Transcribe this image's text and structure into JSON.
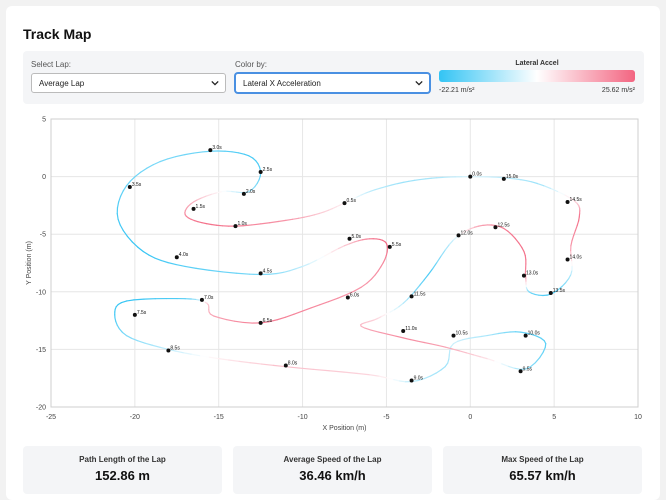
{
  "page": {
    "title": "Track Map"
  },
  "controls": {
    "lap_label": "Select Lap:",
    "lap_value": "Average Lap",
    "color_label": "Color by:",
    "color_value": "Lateral X Acceleration"
  },
  "legend": {
    "title": "Lateral Accel",
    "min_label": "-22.21 m/s²",
    "max_label": "25.62 m/s²",
    "colors": [
      "#33c4f4",
      "#ffffff",
      "#f36581"
    ]
  },
  "chart_data": {
    "type": "scatter",
    "xlabel": "X Position (m)",
    "ylabel": "Y Position (m)",
    "xlim": [
      -25,
      10
    ],
    "ylim": [
      -20,
      5
    ],
    "xticks": [
      -25,
      -20,
      -15,
      -10,
      -5,
      0,
      5,
      10
    ],
    "yticks": [
      5,
      0,
      -5,
      -10,
      -15,
      -20
    ],
    "grid": true,
    "track_points": [
      [
        0,
        0
      ],
      [
        -2,
        -0.1
      ],
      [
        -4,
        -0.5
      ],
      [
        -6,
        -1.3
      ],
      [
        -7.5,
        -2.3
      ],
      [
        -9,
        -3.2
      ],
      [
        -11,
        -3.8
      ],
      [
        -14,
        -4.3
      ],
      [
        -16,
        -4
      ],
      [
        -17,
        -3.3
      ],
      [
        -16.5,
        -2.2
      ],
      [
        -14.8,
        -1.3
      ],
      [
        -13.2,
        -1.3
      ],
      [
        -12.5,
        0.3
      ],
      [
        -13.2,
        1.8
      ],
      [
        -15.5,
        2.2
      ],
      [
        -18.5,
        1.3
      ],
      [
        -20.5,
        -0.8
      ],
      [
        -21,
        -3.7
      ],
      [
        -19.5,
        -6.5
      ],
      [
        -17,
        -7.8
      ],
      [
        -12.5,
        -8.5
      ],
      [
        -10,
        -7.8
      ],
      [
        -7.5,
        -6
      ],
      [
        -6,
        -5.4
      ],
      [
        -5,
        -5.8
      ],
      [
        -5.2,
        -7.5
      ],
      [
        -6.5,
        -9.6
      ],
      [
        -9.5,
        -11.4
      ],
      [
        -12.5,
        -12.7
      ],
      [
        -15.3,
        -12.1
      ],
      [
        -15.7,
        -11
      ],
      [
        -17,
        -10.6
      ],
      [
        -20.5,
        -10.8
      ],
      [
        -21.2,
        -12
      ],
      [
        -20.5,
        -13.8
      ],
      [
        -18,
        -15
      ],
      [
        -15,
        -15.8
      ],
      [
        -11,
        -16.5
      ],
      [
        -6,
        -17.2
      ],
      [
        -3.5,
        -17.8
      ],
      [
        -1.5,
        -16.5
      ],
      [
        -1,
        -14.5
      ],
      [
        1,
        -13.8
      ],
      [
        3,
        -13.5
      ],
      [
        4.5,
        -14.5
      ],
      [
        3.3,
        -16.7
      ],
      [
        1,
        -15.8
      ],
      [
        -1.5,
        -14.8
      ],
      [
        -4,
        -14
      ],
      [
        -6.5,
        -13
      ],
      [
        -5.5,
        -12.3
      ],
      [
        -4,
        -11
      ],
      [
        -2.5,
        -8.5
      ],
      [
        -1,
        -5.5
      ],
      [
        0.5,
        -4.3
      ],
      [
        2,
        -4.5
      ],
      [
        3.2,
        -6.5
      ],
      [
        3.3,
        -8.6
      ],
      [
        3.5,
        -10
      ],
      [
        4.8,
        -10.2
      ],
      [
        6,
        -8.5
      ],
      [
        6,
        -6
      ],
      [
        6.5,
        -3.5
      ],
      [
        6.2,
        -2.1
      ],
      [
        4,
        -0.6
      ],
      [
        2,
        -0.1
      ],
      [
        0,
        0
      ]
    ],
    "point_accel": [
      -2,
      -8,
      -10,
      -6,
      4,
      10,
      18,
      22,
      24,
      20,
      14,
      2,
      -10,
      -18,
      -20,
      -16,
      -14,
      -16,
      -20,
      -22,
      -18,
      -14,
      -6,
      10,
      22,
      25,
      20,
      18,
      20,
      22,
      16,
      10,
      -18,
      -22,
      -20,
      -14,
      -6,
      4,
      12,
      8,
      -6,
      -10,
      -4,
      -8,
      -16,
      -18,
      -12,
      6,
      16,
      20,
      14,
      8,
      -6,
      -20,
      -4,
      16,
      22,
      24,
      20,
      -14,
      -20,
      -8,
      18,
      24,
      8,
      -10,
      -6,
      -2
    ],
    "time_markers": [
      {
        "label": "0.0s",
        "x": 0,
        "y": 0
      },
      {
        "label": "0.5s",
        "x": -7.5,
        "y": -2.3
      },
      {
        "label": "1.0s",
        "x": -14,
        "y": -4.3
      },
      {
        "label": "1.5s",
        "x": -16.5,
        "y": -2.8
      },
      {
        "label": "2.0s",
        "x": -13.5,
        "y": -1.5
      },
      {
        "label": "2.5s",
        "x": -12.5,
        "y": 0.4
      },
      {
        "label": "3.0s",
        "x": -15.5,
        "y": 2.3
      },
      {
        "label": "3.5s",
        "x": -20.3,
        "y": -0.9
      },
      {
        "label": "4.0s",
        "x": -17.5,
        "y": -7
      },
      {
        "label": "4.5s",
        "x": -12.5,
        "y": -8.4
      },
      {
        "label": "5.0s",
        "x": -7.2,
        "y": -5.4
      },
      {
        "label": "5.5s",
        "x": -4.8,
        "y": -6.1
      },
      {
        "label": "6.0s",
        "x": -7.3,
        "y": -10.5
      },
      {
        "label": "6.5s",
        "x": -12.5,
        "y": -12.7
      },
      {
        "label": "7.0s",
        "x": -16,
        "y": -10.7
      },
      {
        "label": "7.5s",
        "x": -20,
        "y": -12
      },
      {
        "label": "8.0s",
        "x": -11,
        "y": -16.4
      },
      {
        "label": "8.5s",
        "x": -18,
        "y": -15.1
      },
      {
        "label": "9.0s",
        "x": -3.5,
        "y": -17.7
      },
      {
        "label": "9.5s",
        "x": 3,
        "y": -16.9
      },
      {
        "label": "10.0s",
        "x": 3.3,
        "y": -13.8
      },
      {
        "label": "10.5s",
        "x": -1,
        "y": -13.8
      },
      {
        "label": "11.0s",
        "x": -4,
        "y": -13.4
      },
      {
        "label": "11.5s",
        "x": -3.5,
        "y": -10.4
      },
      {
        "label": "12.0s",
        "x": -0.7,
        "y": -5.1
      },
      {
        "label": "12.5s",
        "x": 1.5,
        "y": -4.4
      },
      {
        "label": "13.0s",
        "x": 3.2,
        "y": -8.6
      },
      {
        "label": "13.5s",
        "x": 4.8,
        "y": -10.1
      },
      {
        "label": "14.0s",
        "x": 5.8,
        "y": -7.2
      },
      {
        "label": "14.5s",
        "x": 5.8,
        "y": -2.2
      },
      {
        "label": "15.0s",
        "x": 2,
        "y": -0.2
      }
    ]
  },
  "stats": [
    {
      "label": "Path Length of the Lap",
      "value": "152.86 m"
    },
    {
      "label": "Average Speed of the Lap",
      "value": "36.46 km/h"
    },
    {
      "label": "Max Speed of the Lap",
      "value": "65.57 km/h"
    }
  ]
}
